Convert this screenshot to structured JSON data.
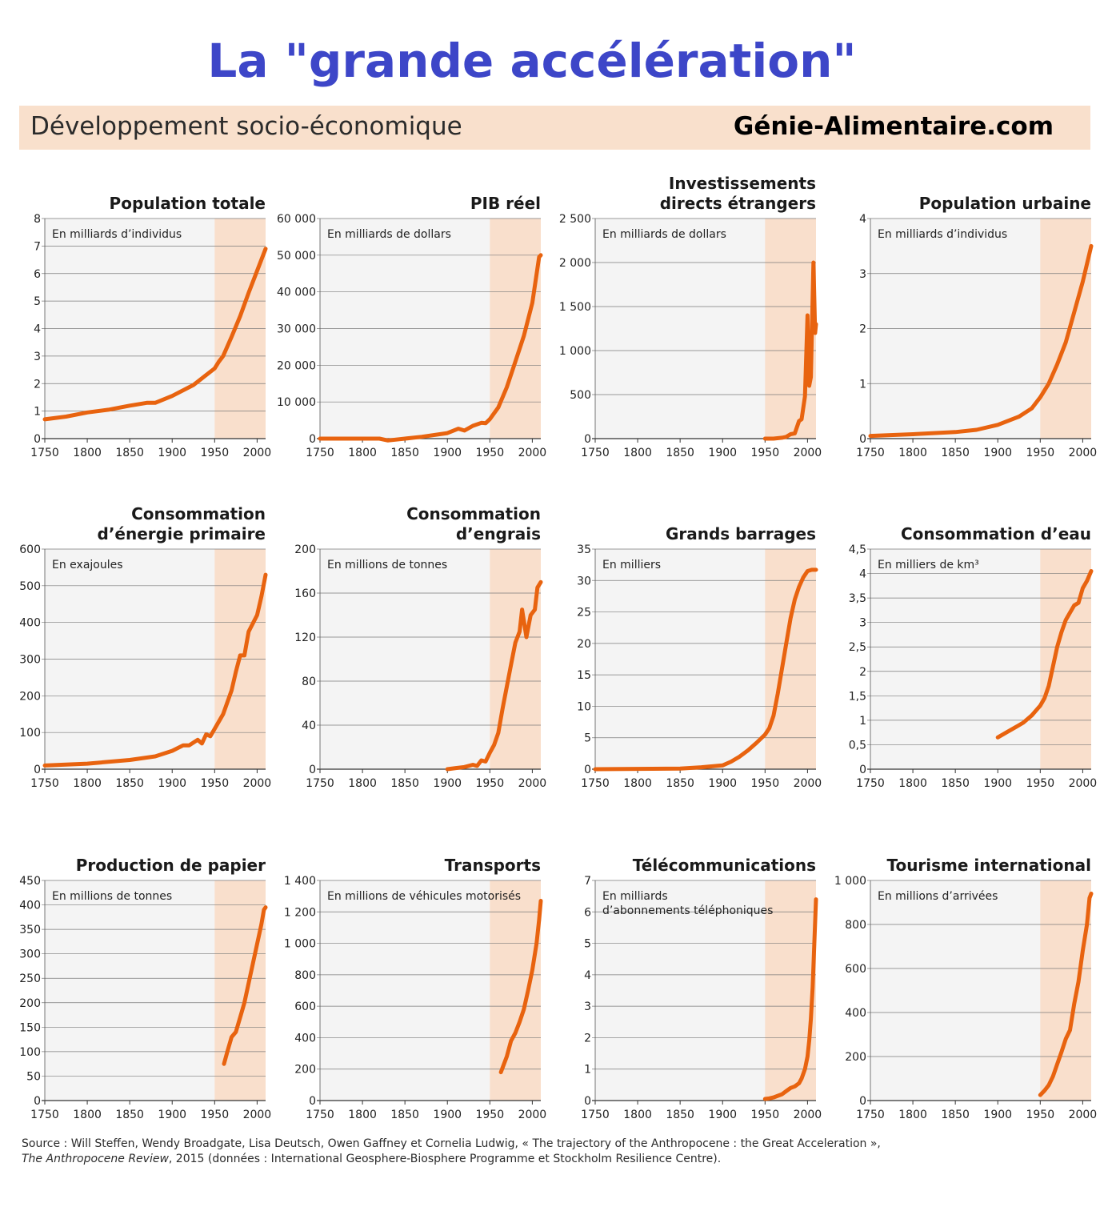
{
  "title": "La \"grande accélération\"",
  "subtitle": "Développement socio-économique",
  "brand": "Génie-Alimentaire.com",
  "source": {
    "line1": "Source : Will Steffen, Wendy Broadgate, Lisa Deutsch, Owen Gaffney et Cornelia Ludwig, « The trajectory of the Anthropocene : the Great Acceleration »,",
    "journal": "The Anthropocene Review",
    "line2": ", 2015 (données : International Geosphere-Biosphere Programme et Stockholm Resilience Centre)."
  },
  "colors": {
    "line": "#e8630f",
    "highlight": "#f9dfcc",
    "plot_bg": "#f4f4f4",
    "grid": "#7a7a7a",
    "title": "#3d46c8"
  },
  "chart_data": [
    {
      "type": "line",
      "title": [
        "Population  totale"
      ],
      "unit": [
        "En milliards d’individus"
      ],
      "xlim": [
        1750,
        2010
      ],
      "xticks": [
        "1750",
        "1800",
        "1850",
        "1900",
        "1950",
        "2000"
      ],
      "ylim": [
        0,
        8
      ],
      "yticks": [
        "0",
        "1",
        "2",
        "3",
        "4",
        "5",
        "6",
        "7",
        "8"
      ],
      "highlight_from": 1950,
      "x": [
        1750,
        1775,
        1800,
        1825,
        1850,
        1870,
        1880,
        1900,
        1925,
        1950,
        1955,
        1960,
        1970,
        1980,
        1990,
        2000,
        2010
      ],
      "y": [
        0.7,
        0.8,
        0.95,
        1.05,
        1.2,
        1.3,
        1.3,
        1.55,
        1.95,
        2.55,
        2.8,
        3.0,
        3.7,
        4.45,
        5.3,
        6.1,
        6.9
      ]
    },
    {
      "type": "line",
      "title": [
        "PIB réel"
      ],
      "unit": [
        "En milliards de dollars"
      ],
      "xlim": [
        1750,
        2010
      ],
      "xticks": [
        "1750",
        "1800",
        "1850",
        "1900",
        "1950",
        "2000"
      ],
      "ylim": [
        0,
        60000
      ],
      "yticks": [
        "0",
        "10 000",
        "20 000",
        "30 000",
        "40 000",
        "50 000",
        "60 000"
      ],
      "highlight_from": 1950,
      "x": [
        1750,
        1800,
        1820,
        1830,
        1850,
        1870,
        1900,
        1913,
        1920,
        1930,
        1940,
        1945,
        1950,
        1960,
        1970,
        1980,
        1990,
        2000,
        2008,
        2010
      ],
      "y": [
        0,
        0,
        0,
        -500,
        0,
        500,
        1500,
        2700,
        2200,
        3500,
        4300,
        4200,
        5300,
        8500,
        14000,
        21000,
        28000,
        37000,
        49500,
        50000
      ]
    },
    {
      "type": "line",
      "title": [
        "Investissements",
        "directs étrangers"
      ],
      "unit": [
        "En milliards de dollars"
      ],
      "xlim": [
        1750,
        2010
      ],
      "xticks": [
        "1750",
        "1800",
        "1850",
        "1900",
        "1950",
        "2000"
      ],
      "ylim": [
        0,
        2500
      ],
      "yticks": [
        "0",
        "500",
        "1 000",
        "1 500",
        "2 000",
        "2 500"
      ],
      "highlight_from": 1950,
      "x": [
        1950,
        1960,
        1970,
        1975,
        1980,
        1985,
        1990,
        1993,
        1997,
        2000,
        2002,
        2004,
        2007,
        2009,
        2010
      ],
      "y": [
        0,
        0,
        10,
        20,
        50,
        60,
        200,
        220,
        480,
        1400,
        600,
        700,
        2000,
        1200,
        1300
      ]
    },
    {
      "type": "line",
      "title": [
        "Population urbaine"
      ],
      "unit": [
        "En milliards d’individus"
      ],
      "xlim": [
        1750,
        2010
      ],
      "xticks": [
        "1750",
        "1800",
        "1850",
        "1900",
        "1950",
        "2000"
      ],
      "ylim": [
        0,
        4
      ],
      "yticks": [
        "0",
        "1",
        "2",
        "3",
        "4"
      ],
      "highlight_from": 1950,
      "x": [
        1750,
        1800,
        1850,
        1875,
        1900,
        1925,
        1940,
        1950,
        1960,
        1970,
        1980,
        1990,
        2000,
        2010
      ],
      "y": [
        0.05,
        0.08,
        0.12,
        0.16,
        0.25,
        0.4,
        0.55,
        0.75,
        1.0,
        1.35,
        1.75,
        2.3,
        2.85,
        3.5
      ]
    },
    {
      "type": "line",
      "title": [
        "Consommation",
        "d’énergie primaire"
      ],
      "unit": [
        "En exajoules"
      ],
      "xlim": [
        1750,
        2010
      ],
      "xticks": [
        "1750",
        "1800",
        "1850",
        "1900",
        "1950",
        "2000"
      ],
      "ylim": [
        0,
        600
      ],
      "yticks": [
        "0",
        "100",
        "200",
        "300",
        "400",
        "500",
        "600"
      ],
      "highlight_from": 1950,
      "x": [
        1750,
        1800,
        1850,
        1880,
        1900,
        1913,
        1920,
        1930,
        1935,
        1940,
        1945,
        1950,
        1960,
        1970,
        1975,
        1980,
        1985,
        1990,
        2000,
        2005,
        2010
      ],
      "y": [
        10,
        15,
        25,
        35,
        50,
        65,
        65,
        80,
        70,
        95,
        90,
        110,
        150,
        215,
        265,
        310,
        310,
        375,
        420,
        470,
        530
      ]
    },
    {
      "type": "line",
      "title": [
        "Consommation",
        "d’engrais"
      ],
      "unit": [
        "En millions de tonnes"
      ],
      "xlim": [
        1750,
        2010
      ],
      "xticks": [
        "1750",
        "1800",
        "1850",
        "1900",
        "1950",
        "2000"
      ],
      "ylim": [
        0,
        200
      ],
      "yticks": [
        "0",
        "40",
        "80",
        "120",
        "160",
        "200"
      ],
      "highlight_from": 1950,
      "x": [
        1900,
        1910,
        1920,
        1930,
        1935,
        1940,
        1945,
        1950,
        1955,
        1960,
        1965,
        1970,
        1975,
        1980,
        1985,
        1988,
        1993,
        1998,
        2003,
        2006,
        2010
      ],
      "y": [
        0,
        1,
        2,
        4,
        3,
        8,
        7,
        15,
        22,
        33,
        55,
        75,
        95,
        115,
        125,
        145,
        120,
        140,
        145,
        165,
        170
      ]
    },
    {
      "type": "line",
      "title": [
        "Grands barrages"
      ],
      "unit": [
        "En milliers"
      ],
      "xlim": [
        1750,
        2010
      ],
      "xticks": [
        "1750",
        "1800",
        "1850",
        "1900",
        "1950",
        "2000"
      ],
      "ylim": [
        0,
        35
      ],
      "yticks": [
        "0",
        "5",
        "10",
        "15",
        "20",
        "25",
        "30",
        "35"
      ],
      "highlight_from": 1950,
      "x": [
        1750,
        1800,
        1850,
        1875,
        1900,
        1910,
        1920,
        1930,
        1940,
        1950,
        1955,
        1960,
        1965,
        1970,
        1975,
        1980,
        1985,
        1990,
        1995,
        2000,
        2005,
        2010
      ],
      "y": [
        0,
        0.05,
        0.1,
        0.3,
        0.6,
        1.2,
        2.0,
        3.0,
        4.2,
        5.5,
        6.5,
        8.5,
        12.0,
        16.0,
        20.0,
        24.0,
        27.0,
        29.0,
        30.5,
        31.5,
        31.7,
        31.7
      ]
    },
    {
      "type": "line",
      "title": [
        "Consommation d’eau"
      ],
      "unit": [
        "En milliers de km³"
      ],
      "xlim": [
        1750,
        2010
      ],
      "xticks": [
        "1750",
        "1800",
        "1850",
        "1900",
        "1950",
        "2000"
      ],
      "ylim": [
        0,
        4.5
      ],
      "yticks": [
        "0",
        "0,5",
        "1",
        "1,5",
        "2",
        "2,5",
        "3",
        "3,5",
        "4",
        "4,5"
      ],
      "highlight_from": 1950,
      "x": [
        1900,
        1910,
        1920,
        1930,
        1940,
        1950,
        1955,
        1960,
        1965,
        1970,
        1975,
        1980,
        1985,
        1990,
        1995,
        2000,
        2005,
        2010
      ],
      "y": [
        0.65,
        0.75,
        0.85,
        0.95,
        1.1,
        1.3,
        1.45,
        1.7,
        2.1,
        2.5,
        2.8,
        3.05,
        3.2,
        3.35,
        3.4,
        3.7,
        3.85,
        4.05
      ]
    },
    {
      "type": "line",
      "title": [
        "Production  de papier"
      ],
      "unit": [
        "En millions de tonnes"
      ],
      "xlim": [
        1750,
        2010
      ],
      "xticks": [
        "1750",
        "1800",
        "1850",
        "1900",
        "1950",
        "2000"
      ],
      "ylim": [
        0,
        450
      ],
      "yticks": [
        "0",
        "50",
        "100",
        "150",
        "200",
        "250",
        "300",
        "350",
        "400",
        "450"
      ],
      "highlight_from": 1950,
      "x": [
        1961,
        1965,
        1970,
        1975,
        1980,
        1985,
        1990,
        1995,
        2000,
        2005,
        2008,
        2010
      ],
      "y": [
        75,
        100,
        130,
        140,
        170,
        200,
        240,
        280,
        320,
        360,
        390,
        395
      ]
    },
    {
      "type": "line",
      "title": [
        "Transports"
      ],
      "unit": [
        "En millions de véhicules motorisés"
      ],
      "xlim": [
        1750,
        2010
      ],
      "xticks": [
        "1750",
        "1800",
        "1850",
        "1900",
        "1950",
        "2000"
      ],
      "ylim": [
        0,
        1400
      ],
      "yticks": [
        "0",
        "200",
        "400",
        "600",
        "800",
        "1 000",
        "1 200",
        "1 400"
      ],
      "highlight_from": 1950,
      "x": [
        1963,
        1970,
        1975,
        1980,
        1985,
        1990,
        1995,
        2000,
        2005,
        2008,
        2010
      ],
      "y": [
        180,
        280,
        380,
        430,
        500,
        580,
        700,
        830,
        1000,
        1150,
        1270
      ]
    },
    {
      "type": "line",
      "title": [
        "Télécommunications"
      ],
      "unit": [
        "En milliards",
        "d’abonnements téléphoniques"
      ],
      "xlim": [
        1750,
        2010
      ],
      "xticks": [
        "1750",
        "1800",
        "1850",
        "1900",
        "1950",
        "2000"
      ],
      "ylim": [
        0,
        7
      ],
      "yticks": [
        "0",
        "1",
        "2",
        "3",
        "4",
        "5",
        "6",
        "7"
      ],
      "highlight_from": 1950,
      "x": [
        1950,
        1955,
        1960,
        1965,
        1970,
        1975,
        1980,
        1985,
        1990,
        1993,
        1995,
        1997,
        2000,
        2002,
        2004,
        2006,
        2008,
        2010
      ],
      "y": [
        0.05,
        0.07,
        0.1,
        0.15,
        0.2,
        0.3,
        0.4,
        0.45,
        0.55,
        0.7,
        0.85,
        1.0,
        1.4,
        1.9,
        2.6,
        3.6,
        5.0,
        6.4
      ]
    },
    {
      "type": "line",
      "title": [
        "Tourisme international"
      ],
      "unit": [
        "En millions d’arrivées"
      ],
      "xlim": [
        1750,
        2010
      ],
      "xticks": [
        "1750",
        "1800",
        "1850",
        "1900",
        "1950",
        "2000"
      ],
      "ylim": [
        0,
        1000
      ],
      "yticks": [
        "0",
        "200",
        "400",
        "600",
        "800",
        "1 000"
      ],
      "highlight_from": 1950,
      "x": [
        1950,
        1955,
        1960,
        1965,
        1970,
        1975,
        1980,
        1985,
        1990,
        1995,
        2000,
        2005,
        2008,
        2010
      ],
      "y": [
        25,
        45,
        70,
        110,
        165,
        220,
        280,
        320,
        440,
        540,
        680,
        800,
        920,
        940
      ]
    }
  ]
}
